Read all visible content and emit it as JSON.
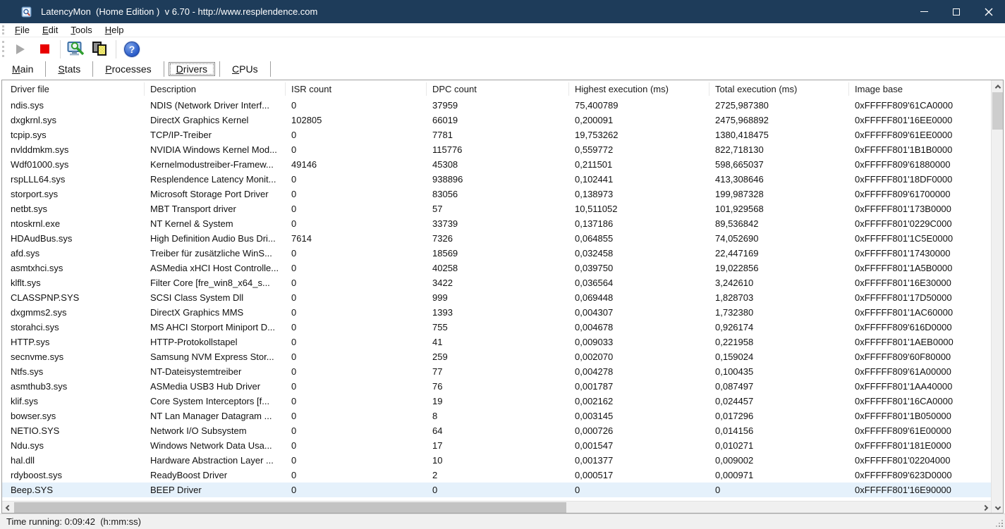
{
  "window": {
    "title": "LatencyMon  (Home Edition )  v 6.70 - http://www.resplendence.com",
    "controls": [
      "minimize",
      "maximize",
      "close"
    ]
  },
  "menu": {
    "items": [
      "File",
      "Edit",
      "Tools",
      "Help"
    ]
  },
  "toolbar": {
    "buttons": [
      {
        "id": "start",
        "icon": "play-icon",
        "enabled": false
      },
      {
        "id": "stop",
        "icon": "stop-icon",
        "enabled": true
      },
      {
        "id": "analyze",
        "icon": "monitor-magnifier-icon",
        "enabled": true
      },
      {
        "id": "copy",
        "icon": "copy-icon",
        "enabled": true
      },
      {
        "id": "help",
        "icon": "help-icon",
        "enabled": true
      }
    ]
  },
  "tabs": {
    "items": [
      "Main",
      "Stats",
      "Processes",
      "Drivers",
      "CPUs"
    ],
    "selected": "Drivers"
  },
  "table": {
    "columns": [
      "Driver file",
      "Description",
      "ISR count",
      "DPC count",
      "Highest execution (ms)",
      "Total execution (ms)",
      "Image base"
    ],
    "selected_row_index": 26,
    "rows": [
      [
        "ndis.sys",
        "NDIS (Network Driver Interf...",
        "0",
        "37959",
        "75,400789",
        "2725,987380",
        "0xFFFFF809'61CA0000"
      ],
      [
        "dxgkrnl.sys",
        "DirectX Graphics Kernel",
        "102805",
        "66019",
        "0,200091",
        "2475,968892",
        "0xFFFFF801'16EE0000"
      ],
      [
        "tcpip.sys",
        "TCP/IP-Treiber",
        "0",
        "7781",
        "19,753262",
        "1380,418475",
        "0xFFFFF809'61EE0000"
      ],
      [
        "nvlddmkm.sys",
        "NVIDIA Windows Kernel Mod...",
        "0",
        "115776",
        "0,559772",
        "822,718130",
        "0xFFFFF801'1B1B0000"
      ],
      [
        "Wdf01000.sys",
        "Kernelmodustreiber-Framew...",
        "49146",
        "45308",
        "0,211501",
        "598,665037",
        "0xFFFFF809'61880000"
      ],
      [
        "rspLLL64.sys",
        "Resplendence Latency Monit...",
        "0",
        "938896",
        "0,102441",
        "413,308646",
        "0xFFFFF801'18DF0000"
      ],
      [
        "storport.sys",
        "Microsoft Storage Port Driver",
        "0",
        "83056",
        "0,138973",
        "199,987328",
        "0xFFFFF809'61700000"
      ],
      [
        "netbt.sys",
        "MBT Transport driver",
        "0",
        "57",
        "10,511052",
        "101,929568",
        "0xFFFFF801'173B0000"
      ],
      [
        "ntoskrnl.exe",
        "NT Kernel & System",
        "0",
        "33739",
        "0,137186",
        "89,536842",
        "0xFFFFF801'0229C000"
      ],
      [
        "HDAudBus.sys",
        "High Definition Audio Bus Dri...",
        "7614",
        "7326",
        "0,064855",
        "74,052690",
        "0xFFFFF801'1C5E0000"
      ],
      [
        "afd.sys",
        "Treiber für zusätzliche WinS...",
        "0",
        "18569",
        "0,032458",
        "22,447169",
        "0xFFFFF801'17430000"
      ],
      [
        "asmtxhci.sys",
        "ASMedia xHCI Host Controlle...",
        "0",
        "40258",
        "0,039750",
        "19,022856",
        "0xFFFFF801'1A5B0000"
      ],
      [
        "klflt.sys",
        "Filter Core [fre_win8_x64_s...",
        "0",
        "3422",
        "0,036564",
        "3,242610",
        "0xFFFFF801'16E30000"
      ],
      [
        "CLASSPNP.SYS",
        "SCSI Class System Dll",
        "0",
        "999",
        "0,069448",
        "1,828703",
        "0xFFFFF801'17D50000"
      ],
      [
        "dxgmms2.sys",
        "DirectX Graphics MMS",
        "0",
        "1393",
        "0,004307",
        "1,732380",
        "0xFFFFF801'1AC60000"
      ],
      [
        "storahci.sys",
        "MS AHCI Storport Miniport D...",
        "0",
        "755",
        "0,004678",
        "0,926174",
        "0xFFFFF809'616D0000"
      ],
      [
        "HTTP.sys",
        "HTTP-Protokollstapel",
        "0",
        "41",
        "0,009033",
        "0,221958",
        "0xFFFFF801'1AEB0000"
      ],
      [
        "secnvme.sys",
        "Samsung NVM Express Stor...",
        "0",
        "259",
        "0,002070",
        "0,159024",
        "0xFFFFF809'60F80000"
      ],
      [
        "Ntfs.sys",
        "NT-Dateisystemtreiber",
        "0",
        "77",
        "0,004278",
        "0,100435",
        "0xFFFFF809'61A00000"
      ],
      [
        "asmthub3.sys",
        "ASMedia USB3 Hub Driver",
        "0",
        "76",
        "0,001787",
        "0,087497",
        "0xFFFFF801'1AA40000"
      ],
      [
        "klif.sys",
        "Core System Interceptors [f...",
        "0",
        "19",
        "0,002162",
        "0,024457",
        "0xFFFFF801'16CA0000"
      ],
      [
        "bowser.sys",
        "NT Lan Manager Datagram ...",
        "0",
        "8",
        "0,003145",
        "0,017296",
        "0xFFFFF801'1B050000"
      ],
      [
        "NETIO.SYS",
        "Network I/O Subsystem",
        "0",
        "64",
        "0,000726",
        "0,014156",
        "0xFFFFF809'61E00000"
      ],
      [
        "Ndu.sys",
        "Windows Network Data Usa...",
        "0",
        "17",
        "0,001547",
        "0,010271",
        "0xFFFFF801'181E0000"
      ],
      [
        "hal.dll",
        "Hardware Abstraction Layer ...",
        "0",
        "10",
        "0,001377",
        "0,009002",
        "0xFFFFF801'02204000"
      ],
      [
        "rdyboost.sys",
        "ReadyBoost Driver",
        "0",
        "2",
        "0,000517",
        "0,000971",
        "0xFFFFF809'623D0000"
      ],
      [
        "Beep.SYS",
        "BEEP Driver",
        "0",
        "0",
        "0",
        "0",
        "0xFFFFF801'16E90000"
      ]
    ]
  },
  "status_bar": {
    "text": "Time running: 0:09:42  (h:mm:ss)"
  },
  "colors": {
    "titlebar": "#1e3c5a",
    "selected_row": "#e5f1fb",
    "stop_button": "#e80000",
    "help_icon": "#2a5cc8"
  }
}
